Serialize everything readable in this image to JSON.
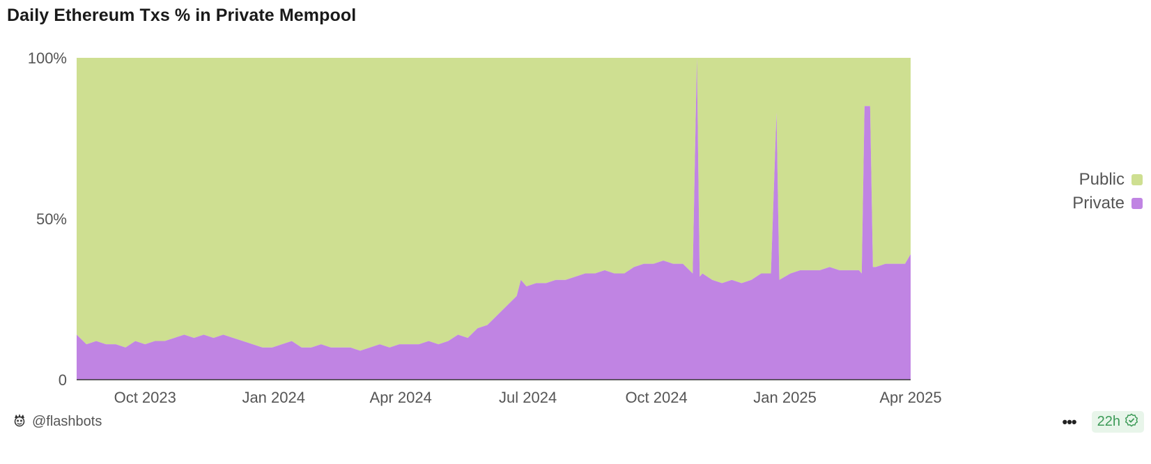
{
  "title": "Daily Ethereum Txs % in Private Mempool",
  "author": "@flashbots",
  "refresh_badge": "22h",
  "icons": {
    "author": "flashbots-logo-icon",
    "more": "more-dots-icon",
    "verified": "check-circle-icon"
  },
  "colors": {
    "public": "#cedf91",
    "private": "#c084e3",
    "axis_text": "#555555",
    "badge_green": "#3c9a57"
  },
  "chart_data": {
    "type": "area",
    "stacked": true,
    "normalized_to_percent": true,
    "x_range": [
      "2023-08-13",
      "2025-04-01"
    ],
    "x_ticks": [
      "Oct 2023",
      "Jan 2024",
      "Apr 2024",
      "Jul 2024",
      "Oct 2024",
      "Jan 2025",
      "Apr 2025"
    ],
    "y_ticks": [
      "100%",
      "50%",
      "0"
    ],
    "ylim": [
      0,
      100
    ],
    "legend": [
      {
        "name": "Public",
        "color": "#cedf91"
      },
      {
        "name": "Private",
        "color": "#c084e3"
      }
    ],
    "legend_position": "right",
    "series": [
      {
        "name": "Private",
        "x": [
          "2023-08-13",
          "2023-08-20",
          "2023-08-27",
          "2023-09-03",
          "2023-09-10",
          "2023-09-17",
          "2023-09-24",
          "2023-10-01",
          "2023-10-08",
          "2023-10-15",
          "2023-10-22",
          "2023-10-29",
          "2023-11-05",
          "2023-11-12",
          "2023-11-19",
          "2023-11-26",
          "2023-12-03",
          "2023-12-10",
          "2023-12-17",
          "2023-12-24",
          "2023-12-31",
          "2024-01-07",
          "2024-01-14",
          "2024-01-21",
          "2024-01-28",
          "2024-02-04",
          "2024-02-11",
          "2024-02-18",
          "2024-02-25",
          "2024-03-03",
          "2024-03-10",
          "2024-03-17",
          "2024-03-24",
          "2024-03-31",
          "2024-04-07",
          "2024-04-14",
          "2024-04-21",
          "2024-04-28",
          "2024-05-05",
          "2024-05-12",
          "2024-05-19",
          "2024-05-26",
          "2024-06-02",
          "2024-06-09",
          "2024-06-16",
          "2024-06-23",
          "2024-06-26",
          "2024-06-30",
          "2024-07-07",
          "2024-07-14",
          "2024-07-21",
          "2024-07-28",
          "2024-08-04",
          "2024-08-11",
          "2024-08-18",
          "2024-08-25",
          "2024-09-01",
          "2024-09-08",
          "2024-09-15",
          "2024-09-22",
          "2024-09-29",
          "2024-10-06",
          "2024-10-13",
          "2024-10-20",
          "2024-10-27",
          "2024-10-30",
          "2024-11-01",
          "2024-11-03",
          "2024-11-10",
          "2024-11-17",
          "2024-11-24",
          "2024-12-01",
          "2024-12-08",
          "2024-12-15",
          "2024-12-22",
          "2024-12-26",
          "2024-12-28",
          "2025-01-05",
          "2025-01-12",
          "2025-01-19",
          "2025-01-26",
          "2025-02-02",
          "2025-02-09",
          "2025-02-16",
          "2025-02-23",
          "2025-02-25",
          "2025-02-27",
          "2025-03-03",
          "2025-03-05",
          "2025-03-07",
          "2025-03-14",
          "2025-03-21",
          "2025-03-28",
          "2025-04-01"
        ],
        "values": [
          14,
          11,
          12,
          11,
          11,
          10,
          12,
          11,
          12,
          12,
          13,
          14,
          13,
          14,
          13,
          14,
          13,
          12,
          11,
          10,
          10,
          11,
          12,
          10,
          10,
          11,
          10,
          10,
          10,
          9,
          10,
          11,
          10,
          11,
          11,
          11,
          12,
          11,
          12,
          14,
          13,
          16,
          17,
          20,
          23,
          26,
          31,
          29,
          30,
          30,
          31,
          31,
          32,
          33,
          33,
          34,
          33,
          33,
          35,
          36,
          36,
          37,
          36,
          36,
          33,
          100,
          32,
          33,
          31,
          30,
          31,
          30,
          31,
          33,
          33,
          83,
          31,
          33,
          34,
          34,
          34,
          35,
          34,
          34,
          34,
          33,
          85,
          85,
          35,
          35,
          36,
          36,
          36,
          39
        ]
      },
      {
        "name": "Public",
        "values_note_computed": false,
        "values": [
          86,
          89,
          88,
          89,
          89,
          90,
          88,
          89,
          88,
          88,
          87,
          86,
          87,
          86,
          87,
          86,
          87,
          88,
          89,
          90,
          90,
          89,
          88,
          90,
          90,
          89,
          90,
          90,
          90,
          91,
          90,
          89,
          90,
          89,
          89,
          89,
          88,
          89,
          88,
          86,
          87,
          84,
          83,
          80,
          77,
          74,
          69,
          71,
          70,
          70,
          69,
          69,
          68,
          67,
          67,
          66,
          67,
          67,
          65,
          64,
          64,
          63,
          64,
          64,
          67,
          0,
          68,
          67,
          69,
          70,
          69,
          70,
          69,
          67,
          67,
          17,
          69,
          67,
          66,
          66,
          66,
          65,
          66,
          66,
          66,
          67,
          15,
          15,
          65,
          65,
          64,
          64,
          64,
          61
        ]
      }
    ]
  }
}
